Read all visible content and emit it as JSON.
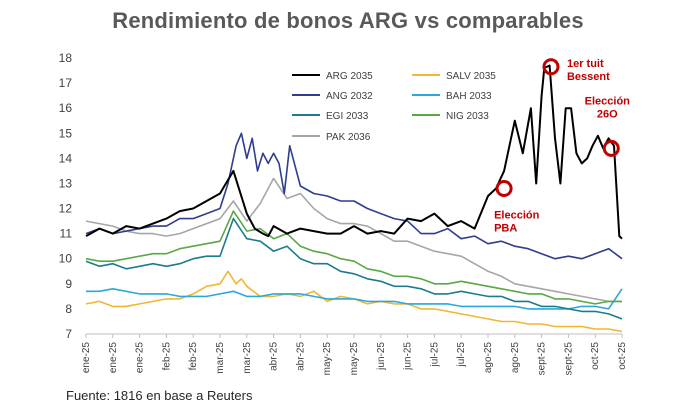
{
  "chart_data": {
    "type": "line",
    "title": "Rendimiento de bonos ARG vs comparables",
    "source": "Fuente: 1816 en base a Reuters",
    "ylim": [
      7,
      18
    ],
    "yticks": [
      7,
      8,
      9,
      10,
      11,
      12,
      13,
      14,
      15,
      16,
      17,
      18
    ],
    "x_range": [
      0,
      20
    ],
    "x_tick_labels": [
      "ene-25",
      "ene-25",
      "ene-25",
      "feb-25",
      "feb-25",
      "mar-25",
      "mar-25",
      "abr-25",
      "abr-25",
      "may-25",
      "may-25",
      "jun-25",
      "jun-25",
      "jul-25",
      "jul-25",
      "ago-25",
      "ago-25",
      "sept-25",
      "sept-25",
      "oct-25",
      "oct-25"
    ],
    "grid": false,
    "series": [
      {
        "name": "ARG 2035",
        "color": "#000000",
        "x": [
          0,
          0.5,
          1,
          1.5,
          2,
          2.5,
          3,
          3.5,
          4,
          4.5,
          5,
          5.5,
          6,
          6.3,
          6.6,
          6.8,
          7,
          7.5,
          8,
          8.5,
          9,
          9.5,
          10,
          10.5,
          11,
          11.5,
          12,
          12.5,
          13,
          13.5,
          14,
          14.5,
          15,
          15.3,
          15.6,
          16,
          16.3,
          16.6,
          16.8,
          17,
          17.1,
          17.3,
          17.5,
          17.7,
          17.9,
          18.1,
          18.3,
          18.5,
          18.7,
          18.9,
          19.1,
          19.3,
          19.5,
          19.7,
          19.9,
          20
        ],
        "values": [
          10.9,
          11.2,
          11.0,
          11.3,
          11.2,
          11.4,
          11.6,
          11.9,
          12.0,
          12.3,
          12.6,
          13.5,
          11.8,
          11.2,
          11.0,
          10.9,
          11.3,
          11.0,
          11.2,
          11.1,
          11.0,
          11.0,
          11.3,
          11.0,
          11.1,
          11.0,
          11.6,
          11.5,
          11.8,
          11.3,
          11.5,
          11.2,
          12.5,
          12.8,
          13.5,
          15.5,
          14.2,
          16.0,
          13.0,
          16.5,
          17.6,
          17.7,
          14.8,
          13.0,
          16.0,
          16.0,
          14.2,
          13.8,
          14.0,
          14.5,
          14.9,
          14.4,
          14.8,
          14.5,
          10.9,
          10.8
        ]
      },
      {
        "name": "SALV 2035",
        "color": "#f2b632",
        "x": [
          0,
          0.5,
          1,
          1.5,
          2,
          2.5,
          3,
          3.5,
          4,
          4.5,
          5,
          5.3,
          5.6,
          5.8,
          6,
          6.5,
          7,
          7.5,
          8,
          8.5,
          9,
          9.5,
          10,
          10.5,
          11,
          11.5,
          12,
          12.5,
          13,
          13.5,
          14,
          14.5,
          15,
          15.5,
          16,
          16.5,
          17,
          17.5,
          18,
          18.5,
          19,
          19.5,
          20
        ],
        "values": [
          8.2,
          8.3,
          8.1,
          8.1,
          8.2,
          8.3,
          8.4,
          8.4,
          8.6,
          8.9,
          9.0,
          9.5,
          9.0,
          9.2,
          8.9,
          8.5,
          8.5,
          8.6,
          8.5,
          8.7,
          8.3,
          8.5,
          8.4,
          8.2,
          8.3,
          8.2,
          8.2,
          8.0,
          8.0,
          7.9,
          7.8,
          7.7,
          7.6,
          7.5,
          7.5,
          7.4,
          7.4,
          7.3,
          7.3,
          7.3,
          7.2,
          7.2,
          7.1
        ]
      },
      {
        "name": "ANG 2032",
        "color": "#2e3d8f",
        "x": [
          0,
          0.5,
          1,
          1.5,
          2,
          2.5,
          3,
          3.5,
          4,
          4.5,
          5,
          5.3,
          5.6,
          5.8,
          6,
          6.2,
          6.4,
          6.6,
          6.8,
          7,
          7.2,
          7.4,
          7.6,
          8,
          8.5,
          9,
          9.5,
          10,
          10.5,
          11,
          11.5,
          12,
          12.5,
          13,
          13.5,
          14,
          14.5,
          15,
          15.5,
          16,
          16.5,
          17,
          17.5,
          18,
          18.5,
          19,
          19.5,
          20
        ],
        "values": [
          11.0,
          11.2,
          11.0,
          11.1,
          11.2,
          11.3,
          11.3,
          11.6,
          11.6,
          11.8,
          12.0,
          13.0,
          14.5,
          15.0,
          14.0,
          14.8,
          13.5,
          14.2,
          13.8,
          14.2,
          13.8,
          12.6,
          14.5,
          12.9,
          12.6,
          12.5,
          12.3,
          12.3,
          12.0,
          11.8,
          11.6,
          11.5,
          11.0,
          11.0,
          11.2,
          10.8,
          10.9,
          10.6,
          10.7,
          10.5,
          10.4,
          10.2,
          10.0,
          10.1,
          10.0,
          10.2,
          10.4,
          10.0
        ]
      },
      {
        "name": "BAH 2033",
        "color": "#2aa8d9",
        "x": [
          0,
          0.5,
          1,
          1.5,
          2,
          2.5,
          3,
          3.5,
          4,
          4.5,
          5,
          5.5,
          6,
          6.5,
          7,
          7.5,
          8,
          8.5,
          9,
          9.5,
          10,
          10.5,
          11,
          11.5,
          12,
          12.5,
          13,
          13.5,
          14,
          14.5,
          15,
          15.5,
          16,
          16.5,
          17,
          17.5,
          18,
          18.5,
          19,
          19.5,
          20
        ],
        "values": [
          8.7,
          8.7,
          8.8,
          8.7,
          8.6,
          8.6,
          8.6,
          8.5,
          8.5,
          8.5,
          8.6,
          8.7,
          8.5,
          8.5,
          8.6,
          8.6,
          8.6,
          8.5,
          8.4,
          8.4,
          8.4,
          8.3,
          8.3,
          8.3,
          8.2,
          8.2,
          8.2,
          8.2,
          8.1,
          8.1,
          8.1,
          8.1,
          8.1,
          8.0,
          8.0,
          8.0,
          8.0,
          8.1,
          8.1,
          8.0,
          8.8
        ]
      },
      {
        "name": "EGI 2033",
        "color": "#1c7c8c",
        "x": [
          0,
          0.5,
          1,
          1.5,
          2,
          2.5,
          3,
          3.5,
          4,
          4.5,
          5,
          5.5,
          6,
          6.5,
          7,
          7.5,
          8,
          8.5,
          9,
          9.5,
          10,
          10.5,
          11,
          11.5,
          12,
          12.5,
          13,
          13.5,
          14,
          14.5,
          15,
          15.5,
          16,
          16.5,
          17,
          17.5,
          18,
          18.5,
          19,
          19.5,
          20
        ],
        "values": [
          9.9,
          9.7,
          9.8,
          9.6,
          9.7,
          9.8,
          9.7,
          9.8,
          10.0,
          10.1,
          10.1,
          11.6,
          10.8,
          10.7,
          10.3,
          10.5,
          10.0,
          9.8,
          9.8,
          9.5,
          9.4,
          9.2,
          9.1,
          8.9,
          8.9,
          8.8,
          8.6,
          8.6,
          8.7,
          8.6,
          8.5,
          8.5,
          8.3,
          8.3,
          8.1,
          8.1,
          8.0,
          7.9,
          7.9,
          7.8,
          7.6
        ]
      },
      {
        "name": "NIG 2033",
        "color": "#5aa844",
        "x": [
          0,
          0.5,
          1,
          1.5,
          2,
          2.5,
          3,
          3.5,
          4,
          4.5,
          5,
          5.5,
          6,
          6.5,
          7,
          7.5,
          8,
          8.5,
          9,
          9.5,
          10,
          10.5,
          11,
          11.5,
          12,
          12.5,
          13,
          13.5,
          14,
          14.5,
          15,
          15.5,
          16,
          16.5,
          17,
          17.5,
          18,
          18.5,
          19,
          19.5,
          20
        ],
        "values": [
          10.0,
          9.9,
          9.9,
          10.0,
          10.1,
          10.2,
          10.2,
          10.4,
          10.5,
          10.6,
          10.7,
          11.9,
          11.1,
          11.2,
          10.8,
          11.0,
          10.5,
          10.3,
          10.2,
          10.0,
          9.9,
          9.6,
          9.5,
          9.3,
          9.3,
          9.2,
          9.0,
          9.0,
          9.1,
          9.0,
          8.9,
          8.8,
          8.7,
          8.6,
          8.6,
          8.4,
          8.4,
          8.3,
          8.2,
          8.3,
          8.3
        ]
      },
      {
        "name": "PAK 2036",
        "color": "#a6a6a6",
        "x": [
          0,
          0.5,
          1,
          1.5,
          2,
          2.5,
          3,
          3.5,
          4,
          4.5,
          5,
          5.5,
          6,
          6.5,
          7,
          7.5,
          8,
          8.5,
          9,
          9.5,
          10,
          10.5,
          11,
          11.5,
          12,
          12.5,
          13,
          13.5,
          14,
          14.5,
          15,
          15.5,
          16,
          16.5,
          17,
          17.5,
          18,
          18.5,
          19,
          19.5,
          20
        ],
        "values": [
          11.5,
          11.4,
          11.3,
          11.1,
          11.0,
          11.0,
          10.9,
          11.0,
          11.2,
          11.4,
          11.6,
          12.3,
          11.5,
          12.2,
          13.2,
          12.4,
          12.6,
          12.0,
          11.6,
          11.4,
          11.4,
          11.3,
          11.0,
          10.7,
          10.7,
          10.5,
          10.3,
          10.2,
          10.1,
          9.8,
          9.5,
          9.3,
          9.0,
          8.9,
          8.8,
          8.7,
          8.6,
          8.5,
          8.4,
          8.3,
          8.3
        ]
      }
    ],
    "annotations": [
      {
        "label_lines": [
          "Elección",
          "PBA"
        ],
        "x": 15.6,
        "y": 12.8
      },
      {
        "label_lines": [
          "1er tuit",
          "Bessent"
        ],
        "x": 17.35,
        "y": 17.65
      },
      {
        "label_lines": [
          "Elección",
          "26O"
        ],
        "x": 19.6,
        "y": 14.4
      }
    ]
  }
}
